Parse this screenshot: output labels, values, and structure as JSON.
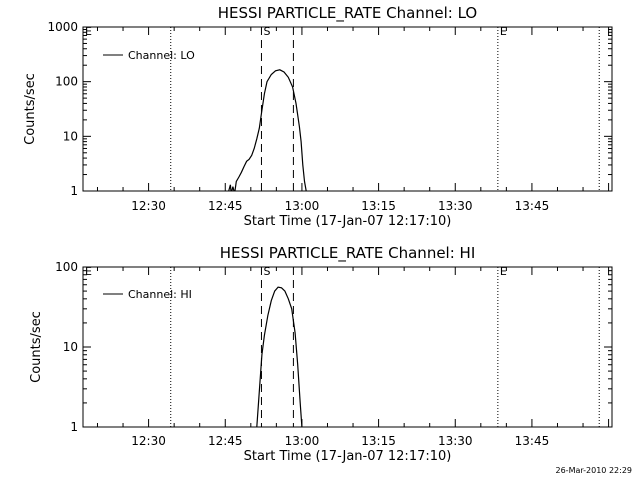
{
  "timestamp": "26-Mar-2010 22:29",
  "colors": {
    "foreground": "#000000",
    "background": "#ffffff"
  },
  "chart_data": [
    {
      "type": "line",
      "title": "HESSI PARTICLE_RATE Channel: LO",
      "xlabel": "Start Time (17-Jan-07 12:17:10)",
      "ylabel": "Counts/sec",
      "yscale": "log",
      "ylim": [
        1,
        1000
      ],
      "yticks": [
        {
          "v": 1,
          "label": "1"
        },
        {
          "v": 10,
          "label": "10"
        },
        {
          "v": 100,
          "label": "100"
        },
        {
          "v": 1000,
          "label": "1000"
        }
      ],
      "xlim": [
        "12:17:10",
        "14:00:40"
      ],
      "xticks": [
        "12:30",
        "12:45",
        "13:00",
        "13:15",
        "13:30",
        "13:45"
      ],
      "legend": {
        "label": "Channel: LO",
        "placement": "top-left"
      },
      "markers": [
        {
          "label": "E",
          "time": "12:17:10",
          "style": "dotted"
        },
        {
          "label": "",
          "time": "12:34:20",
          "style": "dotted"
        },
        {
          "label": "S",
          "time": "12:52:05",
          "style": "dashed"
        },
        {
          "label": "",
          "time": "12:58:20",
          "style": "dashed"
        },
        {
          "label": "E",
          "time": "13:38:20",
          "style": "dotted"
        },
        {
          "label": "",
          "time": "13:58:10",
          "style": "dotted"
        }
      ],
      "series": [
        {
          "name": "Channel: LO",
          "points": [
            [
              "12:45:40",
              1
            ],
            [
              "12:46:00",
              1.3
            ],
            [
              "12:46:10",
              0.9
            ],
            [
              "12:46:30",
              1.2
            ],
            [
              "12:46:50",
              0.9
            ],
            [
              "12:47:10",
              1.5
            ],
            [
              "12:47:40",
              1.8
            ],
            [
              "12:48:10",
              2.2
            ],
            [
              "12:48:40",
              2.8
            ],
            [
              "12:49:10",
              3.5
            ],
            [
              "12:49:40",
              3.8
            ],
            [
              "12:50:10",
              4.5
            ],
            [
              "12:50:40",
              6
            ],
            [
              "12:51:10",
              9
            ],
            [
              "12:51:40",
              14
            ],
            [
              "12:52:10",
              30
            ],
            [
              "12:52:40",
              60
            ],
            [
              "12:53:10",
              100
            ],
            [
              "12:54:00",
              135
            ],
            [
              "12:54:50",
              158
            ],
            [
              "12:55:40",
              165
            ],
            [
              "12:56:30",
              150
            ],
            [
              "12:57:20",
              120
            ],
            [
              "12:58:10",
              80
            ],
            [
              "12:58:50",
              40
            ],
            [
              "12:59:30",
              15
            ],
            [
              "12:59:50",
              8
            ],
            [
              "13:00:10",
              3
            ],
            [
              "13:00:30",
              1.5
            ],
            [
              "13:00:50",
              1
            ]
          ]
        }
      ]
    },
    {
      "type": "line",
      "title": "HESSI PARTICLE_RATE Channel: HI",
      "xlabel": "Start Time (17-Jan-07 12:17:10)",
      "ylabel": "Counts/sec",
      "yscale": "log",
      "ylim": [
        1,
        100
      ],
      "yticks": [
        {
          "v": 1,
          "label": "1"
        },
        {
          "v": 10,
          "label": "10"
        },
        {
          "v": 100,
          "label": "100"
        }
      ],
      "xlim": [
        "12:17:10",
        "14:00:40"
      ],
      "xticks": [
        "12:30",
        "12:45",
        "13:00",
        "13:15",
        "13:30",
        "13:45"
      ],
      "legend": {
        "label": "Channel: HI",
        "placement": "top-left"
      },
      "markers": [
        {
          "label": "E",
          "time": "12:17:10",
          "style": "dotted"
        },
        {
          "label": "",
          "time": "12:34:20",
          "style": "dotted"
        },
        {
          "label": "S",
          "time": "12:52:05",
          "style": "dashed"
        },
        {
          "label": "",
          "time": "12:58:20",
          "style": "dashed"
        },
        {
          "label": "E",
          "time": "13:38:20",
          "style": "dotted"
        },
        {
          "label": "",
          "time": "13:58:10",
          "style": "dotted"
        }
      ],
      "series": [
        {
          "name": "Channel: HI",
          "points": [
            [
              "12:51:10",
              1
            ],
            [
              "12:51:30",
              2
            ],
            [
              "12:51:50",
              4
            ],
            [
              "12:52:10",
              8
            ],
            [
              "12:52:40",
              14
            ],
            [
              "12:53:20",
              25
            ],
            [
              "12:54:00",
              38
            ],
            [
              "12:54:40",
              50
            ],
            [
              "12:55:20",
              56
            ],
            [
              "12:56:00",
              55
            ],
            [
              "12:56:40",
              50
            ],
            [
              "12:57:20",
              40
            ],
            [
              "12:58:00",
              30
            ],
            [
              "12:58:40",
              15
            ],
            [
              "12:59:10",
              6
            ],
            [
              "12:59:40",
              2
            ],
            [
              "13:00:00",
              1
            ]
          ]
        }
      ]
    }
  ]
}
